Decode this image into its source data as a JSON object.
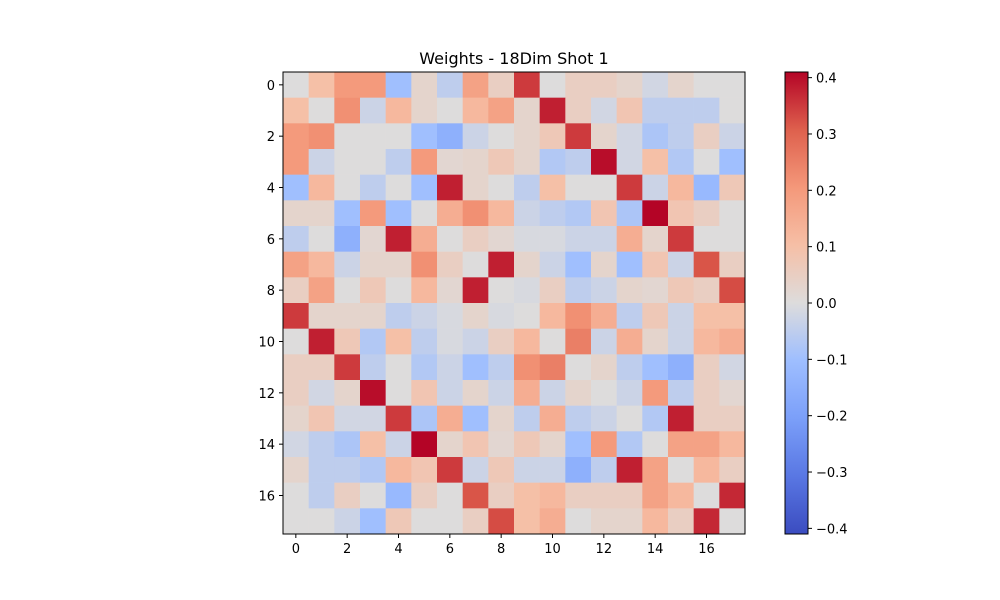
{
  "chart_data": {
    "type": "heatmap",
    "title": "Weights - 18Dim Shot 1",
    "xlabel": "",
    "ylabel": "",
    "x_ticks": [
      "0",
      "2",
      "4",
      "6",
      "8",
      "10",
      "12",
      "14",
      "16"
    ],
    "y_ticks": [
      "0",
      "2",
      "4",
      "6",
      "8",
      "10",
      "12",
      "14",
      "16"
    ],
    "colorbar": {
      "colormap": "coolwarm",
      "vmin": -0.41,
      "vmax": 0.41,
      "ticks": [
        "0.4",
        "0.3",
        "0.2",
        "0.1",
        "0.0",
        "−0.1",
        "−0.2",
        "−0.3",
        "−0.4"
      ],
      "tick_values": [
        0.4,
        0.3,
        0.2,
        0.1,
        0.0,
        -0.1,
        -0.2,
        -0.3,
        -0.4
      ]
    },
    "rows": 18,
    "cols": 18,
    "matrix": [
      [
        0.0,
        0.1,
        0.2,
        0.2,
        -0.1,
        0.03,
        -0.05,
        0.18,
        0.05,
        0.35,
        0.0,
        0.05,
        0.05,
        0.03,
        -0.02,
        0.03,
        0.0,
        0.0
      ],
      [
        0.1,
        0.0,
        0.22,
        -0.03,
        0.12,
        0.03,
        0.0,
        0.12,
        0.18,
        0.03,
        0.38,
        0.05,
        -0.02,
        0.08,
        -0.05,
        -0.05,
        -0.05,
        0.0
      ],
      [
        0.2,
        0.22,
        0.0,
        0.0,
        0.0,
        -0.1,
        -0.15,
        -0.03,
        0.0,
        0.03,
        0.07,
        0.35,
        0.03,
        -0.02,
        -0.08,
        -0.05,
        0.05,
        -0.03
      ],
      [
        0.2,
        -0.03,
        0.0,
        0.0,
        -0.05,
        0.2,
        0.02,
        0.03,
        0.07,
        0.03,
        -0.07,
        -0.05,
        0.4,
        -0.02,
        0.1,
        -0.07,
        0.0,
        -0.1
      ],
      [
        -0.1,
        0.12,
        0.0,
        -0.05,
        0.0,
        -0.1,
        0.38,
        0.03,
        0.0,
        -0.05,
        0.1,
        0.0,
        0.0,
        0.35,
        -0.03,
        0.12,
        -0.12,
        0.07
      ],
      [
        0.03,
        0.03,
        -0.1,
        0.2,
        -0.1,
        0.0,
        0.15,
        0.22,
        0.12,
        -0.03,
        -0.05,
        -0.07,
        0.08,
        -0.08,
        0.41,
        0.08,
        0.05,
        0.0
      ],
      [
        -0.05,
        0.0,
        -0.15,
        0.02,
        0.38,
        0.15,
        0.0,
        0.05,
        0.02,
        -0.01,
        -0.01,
        -0.03,
        -0.03,
        0.15,
        0.03,
        0.35,
        0.0,
        0.0
      ],
      [
        0.18,
        0.12,
        -0.03,
        0.03,
        0.03,
        0.22,
        0.05,
        0.0,
        0.38,
        0.03,
        -0.03,
        -0.1,
        0.03,
        -0.1,
        0.08,
        -0.03,
        0.32,
        0.05
      ],
      [
        0.05,
        0.18,
        0.0,
        0.07,
        0.0,
        0.12,
        0.02,
        0.38,
        0.0,
        -0.01,
        0.05,
        -0.05,
        -0.03,
        0.03,
        0.02,
        0.07,
        0.05,
        0.33
      ],
      [
        0.35,
        0.03,
        0.03,
        0.03,
        -0.05,
        -0.03,
        -0.01,
        0.03,
        -0.01,
        0.0,
        0.12,
        0.22,
        0.15,
        -0.05,
        0.07,
        -0.03,
        0.1,
        0.1
      ],
      [
        0.0,
        0.38,
        0.07,
        -0.07,
        0.1,
        -0.05,
        -0.01,
        -0.03,
        0.05,
        0.12,
        0.0,
        0.25,
        -0.03,
        0.15,
        0.03,
        -0.03,
        0.12,
        0.15
      ],
      [
        0.05,
        0.05,
        0.35,
        -0.05,
        0.0,
        -0.07,
        -0.03,
        -0.1,
        -0.05,
        0.22,
        0.25,
        0.0,
        0.03,
        -0.05,
        -0.1,
        -0.15,
        0.05,
        -0.02
      ],
      [
        0.05,
        -0.02,
        0.03,
        0.4,
        0.0,
        0.08,
        -0.03,
        0.03,
        -0.03,
        0.15,
        -0.03,
        0.03,
        0.0,
        -0.03,
        0.2,
        -0.05,
        0.05,
        0.02
      ],
      [
        0.03,
        0.08,
        -0.02,
        -0.02,
        0.35,
        -0.08,
        0.15,
        -0.1,
        0.03,
        -0.05,
        0.15,
        -0.05,
        -0.03,
        0.0,
        -0.07,
        0.38,
        0.05,
        0.05
      ],
      [
        -0.02,
        -0.05,
        -0.08,
        0.1,
        -0.03,
        0.41,
        0.03,
        0.08,
        0.02,
        0.07,
        0.03,
        -0.1,
        0.2,
        -0.07,
        0.0,
        0.18,
        0.18,
        0.12
      ],
      [
        0.03,
        -0.05,
        -0.05,
        -0.07,
        0.12,
        0.08,
        0.35,
        -0.03,
        0.07,
        -0.03,
        -0.03,
        -0.15,
        -0.05,
        0.38,
        0.18,
        0.0,
        0.12,
        0.05
      ],
      [
        0.0,
        -0.05,
        0.05,
        0.0,
        -0.12,
        0.05,
        0.0,
        0.32,
        0.05,
        0.1,
        0.12,
        0.05,
        0.05,
        0.05,
        0.18,
        0.12,
        0.0,
        0.37
      ],
      [
        0.0,
        0.0,
        -0.03,
        -0.1,
        0.07,
        0.0,
        0.0,
        0.05,
        0.33,
        0.1,
        0.15,
        0.0,
        0.03,
        0.03,
        0.12,
        0.05,
        0.37,
        0.0
      ]
    ]
  }
}
